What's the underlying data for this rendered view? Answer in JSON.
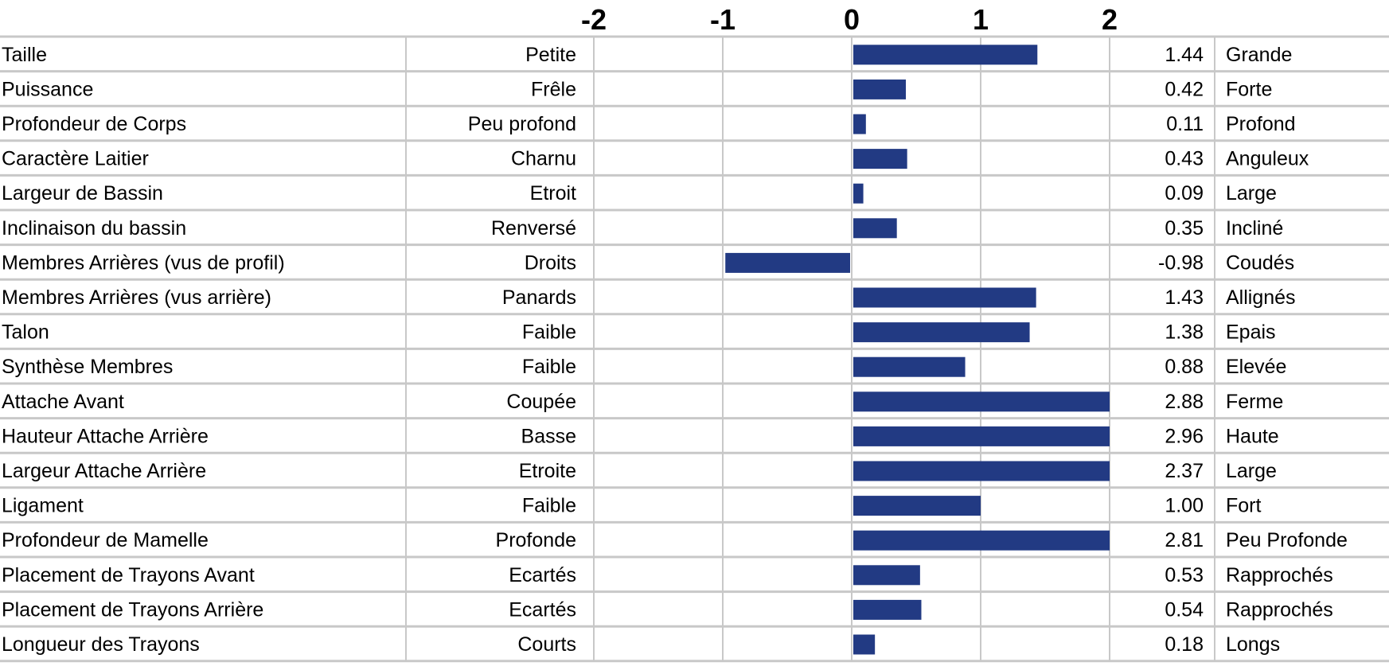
{
  "chart_data": {
    "type": "bar",
    "orientation": "horizontal",
    "xlim": [
      -2,
      2
    ],
    "ticks": [
      "-2",
      "-1",
      "0",
      "1",
      "2"
    ],
    "tick_values": [
      -2,
      -1,
      0,
      1,
      2
    ],
    "bar_color": "#223a83",
    "grid": true,
    "rows": [
      {
        "trait": "Taille",
        "low": "Petite",
        "value": 1.44,
        "value_label": "1.44",
        "high": "Grande"
      },
      {
        "trait": "Puissance",
        "low": "Frêle",
        "value": 0.42,
        "value_label": "0.42",
        "high": "Forte"
      },
      {
        "trait": "Profondeur de Corps",
        "low": "Peu profond",
        "value": 0.11,
        "value_label": "0.11",
        "high": "Profond"
      },
      {
        "trait": "Caractère Laitier",
        "low": "Charnu",
        "value": 0.43,
        "value_label": "0.43",
        "high": "Anguleux"
      },
      {
        "trait": "Largeur de Bassin",
        "low": "Etroit",
        "value": 0.09,
        "value_label": "0.09",
        "high": "Large"
      },
      {
        "trait": "Inclinaison du bassin",
        "low": "Renversé",
        "value": 0.35,
        "value_label": "0.35",
        "high": "Incliné"
      },
      {
        "trait": "Membres Arrières (vus de profil)",
        "low": "Droits",
        "value": -0.98,
        "value_label": "-0.98",
        "high": "Coudés"
      },
      {
        "trait": "Membres Arrières (vus arrière)",
        "low": "Panards",
        "value": 1.43,
        "value_label": "1.43",
        "high": "Allignés"
      },
      {
        "trait": "Talon",
        "low": "Faible",
        "value": 1.38,
        "value_label": "1.38",
        "high": "Epais"
      },
      {
        "trait": "Synthèse Membres",
        "low": "Faible",
        "value": 0.88,
        "value_label": "0.88",
        "high": "Elevée"
      },
      {
        "trait": "Attache Avant",
        "low": "Coupée",
        "value": 2.88,
        "value_label": "2.88",
        "high": "Ferme"
      },
      {
        "trait": "Hauteur Attache Arrière",
        "low": "Basse",
        "value": 2.96,
        "value_label": "2.96",
        "high": "Haute"
      },
      {
        "trait": "Largeur Attache Arrière",
        "low": "Etroite",
        "value": 2.37,
        "value_label": "2.37",
        "high": "Large"
      },
      {
        "trait": "Ligament",
        "low": "Faible",
        "value": 1.0,
        "value_label": "1.00",
        "high": "Fort"
      },
      {
        "trait": "Profondeur de Mamelle",
        "low": "Profonde",
        "value": 2.81,
        "value_label": "2.81",
        "high": "Peu Profonde"
      },
      {
        "trait": "Placement de Trayons Avant",
        "low": "Ecartés",
        "value": 0.53,
        "value_label": "0.53",
        "high": "Rapprochés"
      },
      {
        "trait": "Placement de Trayons Arrière",
        "low": "Ecartés",
        "value": 0.54,
        "value_label": "0.54",
        "high": "Rapprochés"
      },
      {
        "trait": "Longueur des Trayons",
        "low": "Courts",
        "value": 0.18,
        "value_label": "0.18",
        "high": "Longs"
      }
    ]
  }
}
